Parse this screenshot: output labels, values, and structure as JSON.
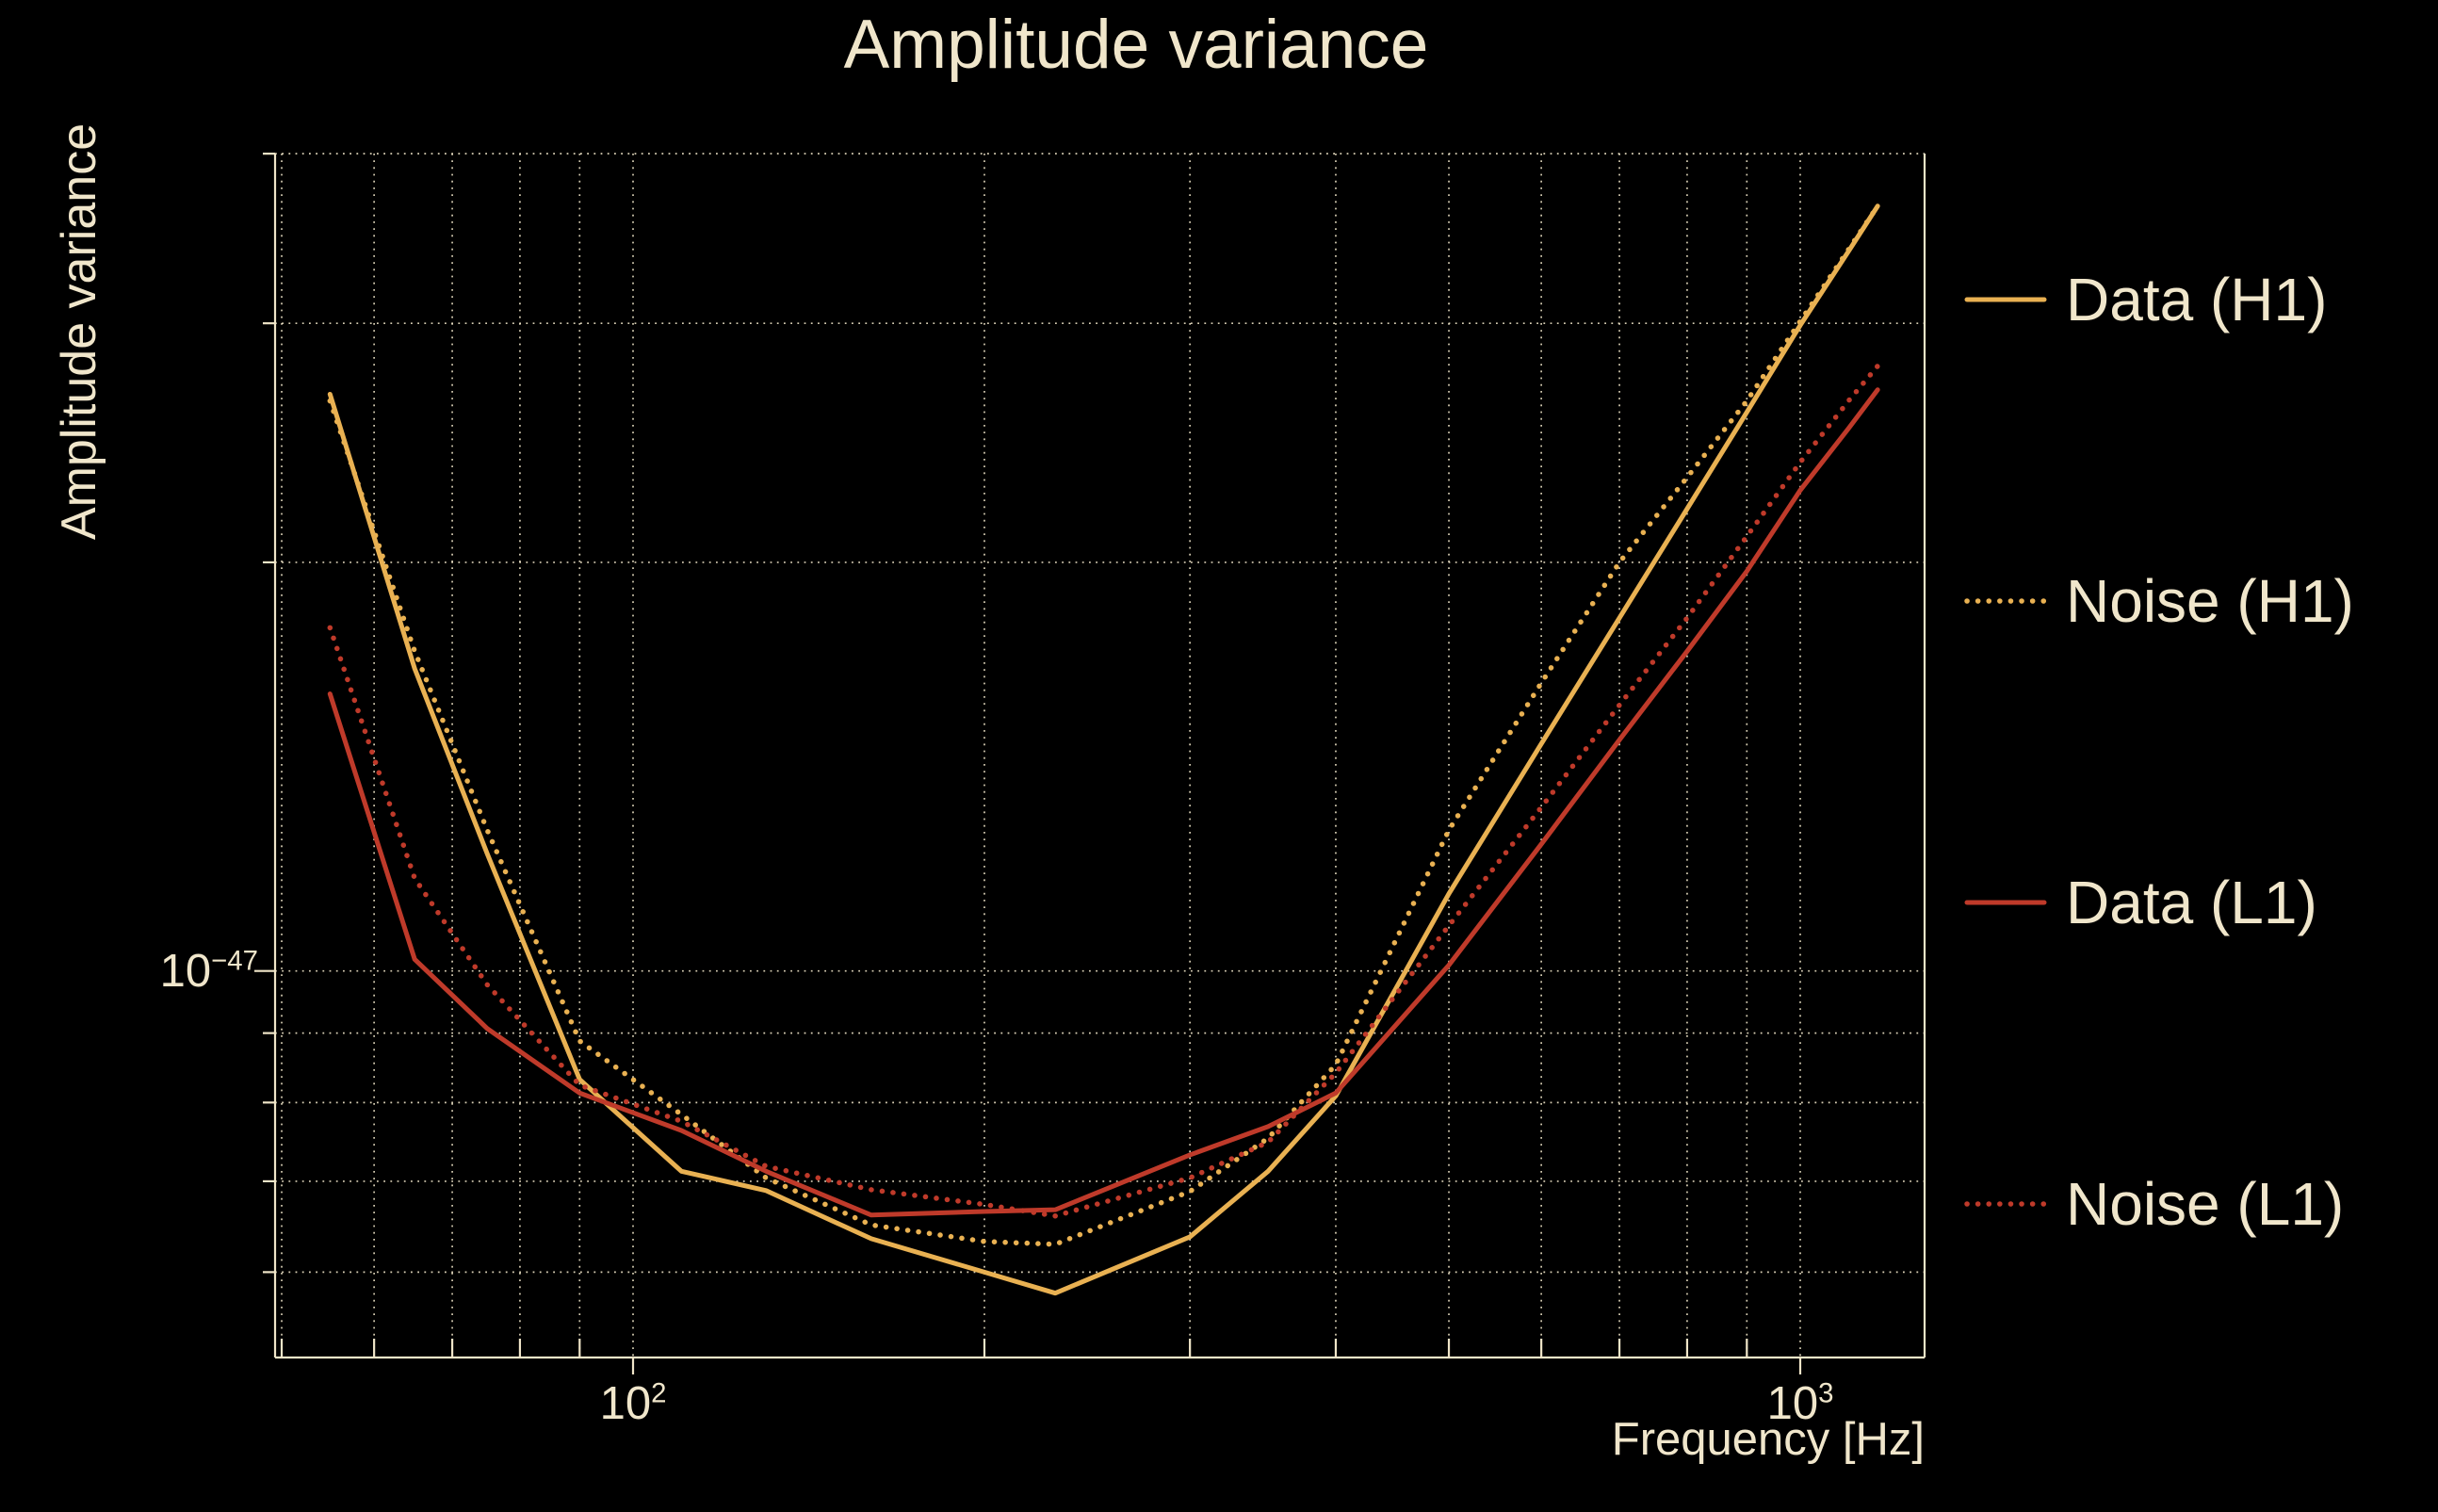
{
  "title": "Amplitude variance",
  "colors": {
    "background": "#000000",
    "text": "#f0e6cb",
    "grid": "#efe5c8",
    "h1_gold": "#e9b152",
    "l1_red": "#bf3a2a"
  },
  "axes": {
    "x": {
      "label": "Frequency [Hz]",
      "scale": "log",
      "min": 49,
      "max": 1280,
      "major_ticks": [
        {
          "base": "10",
          "exp": "2",
          "value": 100
        },
        {
          "base": "10",
          "exp": "3",
          "value": 1000
        }
      ],
      "minor_gridlines": [
        50,
        60,
        70,
        80,
        90,
        200,
        300,
        400,
        500,
        600,
        700,
        800,
        900
      ]
    },
    "y": {
      "label": "Amplitude variance",
      "scale": "log",
      "min": 5.2e-48,
      "max": 4e-47,
      "major_ticks": [
        {
          "base": "10",
          "exp": "−47",
          "value": 1e-47
        }
      ],
      "minor_gridlines": [
        6e-48,
        7e-48,
        8e-48,
        9e-48,
        2e-47,
        3e-47,
        4e-47
      ]
    }
  },
  "legend": {
    "position": "right-outside",
    "items": [
      {
        "label": "Data (H1)",
        "series": 0
      },
      {
        "label": "Noise (H1)",
        "series": 1
      },
      {
        "label": "Data (L1)",
        "series": 2
      },
      {
        "label": "Noise (L1)",
        "series": 3
      }
    ]
  },
  "chart_data": {
    "type": "line",
    "title": "Amplitude variance",
    "xlabel": "Frequency [Hz]",
    "ylabel": "Amplitude variance",
    "xlim": [
      49,
      1280
    ],
    "ylim": [
      5.2e-48,
      4e-47
    ],
    "x_scale": "log",
    "y_scale": "log",
    "grid": true,
    "legend_position": "right-outside",
    "frequencies_hz": [
      55,
      65,
      75,
      90,
      110,
      130,
      160,
      200,
      230,
      300,
      350,
      400,
      500,
      600,
      700,
      800,
      900,
      1000,
      1100,
      1165
    ],
    "series": [
      {
        "name": "Data (H1)",
        "color": "#e9b152",
        "line_style": "solid",
        "values": [
          2.66e-47,
          1.67e-47,
          1.22e-47,
          8.32e-48,
          7.12e-48,
          6.89e-48,
          6.35e-48,
          6e-48,
          5.79e-48,
          6.37e-48,
          7.12e-48,
          8.09e-48,
          1.14e-47,
          1.47e-47,
          1.82e-47,
          2.19e-47,
          2.58e-47,
          2.99e-47,
          3.39e-47,
          3.66e-47
        ]
      },
      {
        "name": "Noise (H1)",
        "color": "#e9b152",
        "line_style": "dotted",
        "values": [
          2.63e-47,
          1.72e-47,
          1.27e-47,
          8.88e-48,
          7.84e-48,
          7.04e-48,
          6.5e-48,
          6.32e-48,
          6.29e-48,
          6.88e-48,
          7.53e-48,
          8.53e-48,
          1.27e-47,
          1.63e-47,
          2e-47,
          2.31e-47,
          2.63e-47,
          3.01e-47,
          3.4e-47,
          3.66e-47
        ]
      },
      {
        "name": "Data (L1)",
        "color": "#bf3a2a",
        "line_style": "solid",
        "values": [
          1.6e-47,
          1.02e-47,
          9.07e-48,
          8.13e-48,
          7.63e-48,
          7.12e-48,
          6.61e-48,
          6.65e-48,
          6.67e-48,
          7.32e-48,
          7.68e-48,
          8.13e-48,
          1.01e-47,
          1.24e-47,
          1.48e-47,
          1.72e-47,
          1.97e-47,
          2.26e-47,
          2.51e-47,
          2.68e-47
        ]
      },
      {
        "name": "Noise (L1)",
        "color": "#bf3a2a",
        "line_style": "dotted",
        "values": [
          1.79e-47,
          1.17e-47,
          9.77e-48,
          8.24e-48,
          7.75e-48,
          7.18e-48,
          6.9e-48,
          6.73e-48,
          6.6e-48,
          7.04e-48,
          7.48e-48,
          8.41e-48,
          1.08e-47,
          1.32e-47,
          1.57e-47,
          1.82e-47,
          2.09e-47,
          2.37e-47,
          2.63e-47,
          2.79e-47
        ]
      }
    ]
  }
}
